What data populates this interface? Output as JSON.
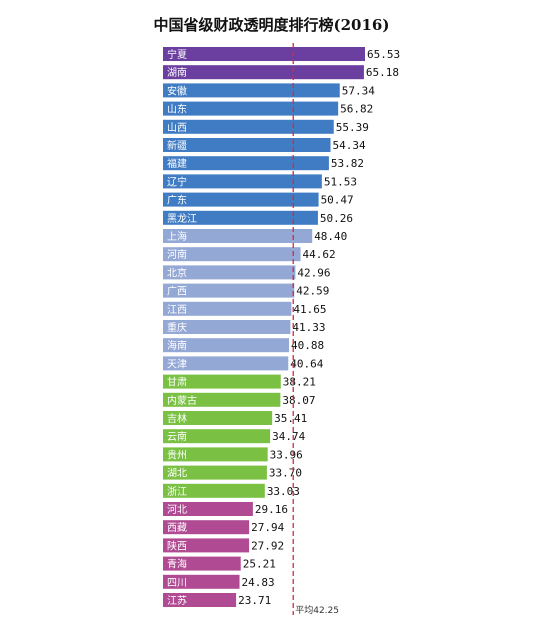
{
  "chart_data": {
    "type": "bar",
    "orientation": "horizontal",
    "title": "中国省级财政透明度排行榜(2016)",
    "categories": [
      "宁夏",
      "湖南",
      "安徽",
      "山东",
      "山西",
      "新疆",
      "福建",
      "辽宁",
      "广东",
      "黑龙江",
      "上海",
      "河南",
      "北京",
      "广西",
      "江西",
      "重庆",
      "海南",
      "天津",
      "甘肃",
      "内蒙古",
      "吉林",
      "云南",
      "贵州",
      "湖北",
      "浙江",
      "河北",
      "西藏",
      "陕西",
      "青海",
      "四川",
      "江苏"
    ],
    "values": [
      65.53,
      65.18,
      57.34,
      56.82,
      55.39,
      54.34,
      53.82,
      51.53,
      50.47,
      50.26,
      48.4,
      44.62,
      42.96,
      42.59,
      41.65,
      41.33,
      40.88,
      40.64,
      38.21,
      38.07,
      35.41,
      34.74,
      33.96,
      33.7,
      33.03,
      29.16,
      27.94,
      27.92,
      25.21,
      24.83,
      23.71
    ],
    "value_labels": [
      "65.53",
      "65.18",
      "57.34",
      "56.82",
      "55.39",
      "54.34",
      "53.82",
      "51.53",
      "50.47",
      "50.26",
      "48.40",
      "44.62",
      "42.96",
      "42.59",
      "41.65",
      "41.33",
      "40.88",
      "40.64",
      "38.21",
      "38.07",
      "35.41",
      "34.74",
      "33.96",
      "33.70",
      "33.03",
      "29.16",
      "27.94",
      "27.92",
      "25.21",
      "24.83",
      "23.71"
    ],
    "group_colors": [
      "#6b3fa0",
      "#6b3fa0",
      "#3f7cc4",
      "#3f7cc4",
      "#3f7cc4",
      "#3f7cc4",
      "#3f7cc4",
      "#3f7cc4",
      "#3f7cc4",
      "#3f7cc4",
      "#94a8d6",
      "#94a8d6",
      "#94a8d6",
      "#94a8d6",
      "#94a8d6",
      "#94a8d6",
      "#94a8d6",
      "#94a8d6",
      "#7ac143",
      "#7ac143",
      "#7ac143",
      "#7ac143",
      "#7ac143",
      "#7ac143",
      "#7ac143",
      "#b04a93",
      "#b04a93",
      "#b04a93",
      "#b04a93",
      "#b04a93",
      "#b04a93"
    ],
    "average": {
      "value": 42.25,
      "label": "平均42.25",
      "color": "#d6283a"
    },
    "xlim": [
      0,
      65.53
    ],
    "grid": false,
    "legend": "none"
  }
}
